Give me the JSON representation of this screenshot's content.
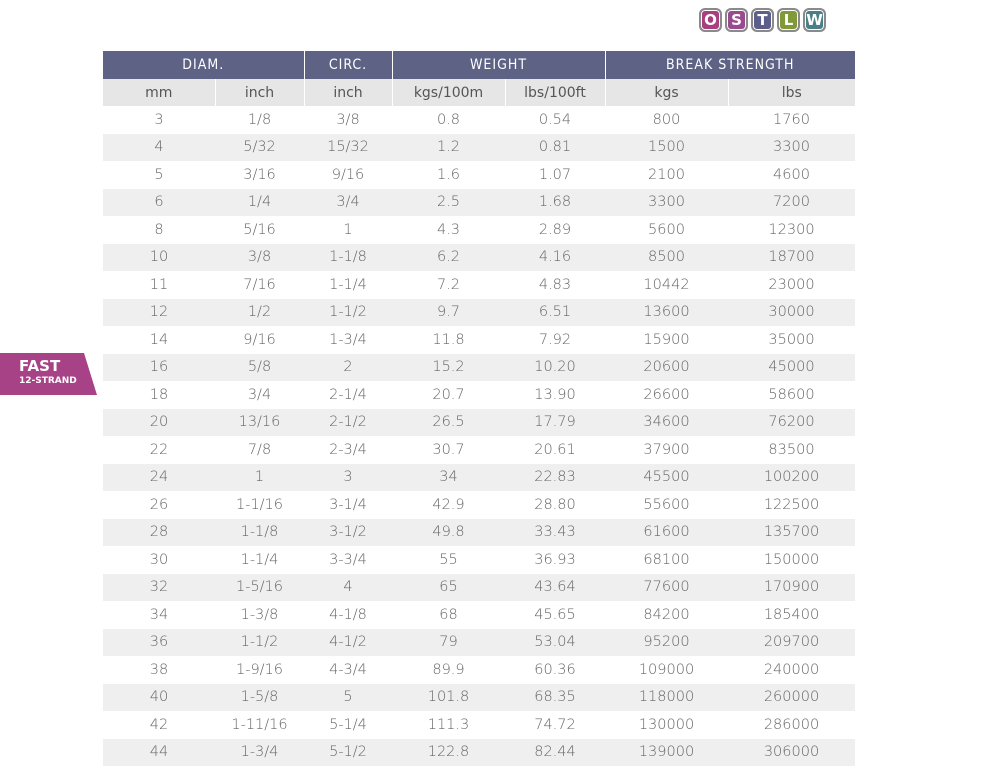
{
  "logo": {
    "letters": [
      {
        "char": "O",
        "color": "#a8407f"
      },
      {
        "char": "S",
        "color": "#9a4a8f"
      },
      {
        "char": "T",
        "color": "#5c5f8a"
      },
      {
        "char": "L",
        "color": "#7f9a36"
      },
      {
        "char": "W",
        "color": "#4a7f87"
      }
    ]
  },
  "side_tab": {
    "title": "FAST",
    "subtitle": "12-STRAND",
    "color": "#a84286"
  },
  "table": {
    "groups": [
      "DIAM.",
      "CIRC.",
      "WEIGHT",
      "BREAK STRENGTH"
    ],
    "units": [
      "mm",
      "inch",
      "inch",
      "kgs/100m",
      "lbs/100ft",
      "kgs",
      "lbs"
    ],
    "rows": [
      [
        "3",
        "1/8",
        "3/8",
        "0.8",
        "0.54",
        "800",
        "1760"
      ],
      [
        "4",
        "5/32",
        "15/32",
        "1.2",
        "0.81",
        "1500",
        "3300"
      ],
      [
        "5",
        "3/16",
        "9/16",
        "1.6",
        "1.07",
        "2100",
        "4600"
      ],
      [
        "6",
        "1/4",
        "3/4",
        "2.5",
        "1.68",
        "3300",
        "7200"
      ],
      [
        "8",
        "5/16",
        "1",
        "4.3",
        "2.89",
        "5600",
        "12300"
      ],
      [
        "10",
        "3/8",
        "1-1/8",
        "6.2",
        "4.16",
        "8500",
        "18700"
      ],
      [
        "11",
        "7/16",
        "1-1/4",
        "7.2",
        "4.83",
        "10442",
        "23000"
      ],
      [
        "12",
        "1/2",
        "1-1/2",
        "9.7",
        "6.51",
        "13600",
        "30000"
      ],
      [
        "14",
        "9/16",
        "1-3/4",
        "11.8",
        "7.92",
        "15900",
        "35000"
      ],
      [
        "16",
        "5/8",
        "2",
        "15.2",
        "10.20",
        "20600",
        "45000"
      ],
      [
        "18",
        "3/4",
        "2-1/4",
        "20.7",
        "13.90",
        "26600",
        "58600"
      ],
      [
        "20",
        "13/16",
        "2-1/2",
        "26.5",
        "17.79",
        "34600",
        "76200"
      ],
      [
        "22",
        "7/8",
        "2-3/4",
        "30.7",
        "20.61",
        "37900",
        "83500"
      ],
      [
        "24",
        "1",
        "3",
        "34",
        "22.83",
        "45500",
        "100200"
      ],
      [
        "26",
        "1-1/16",
        "3-1/4",
        "42.9",
        "28.80",
        "55600",
        "122500"
      ],
      [
        "28",
        "1-1/8",
        "3-1/2",
        "49.8",
        "33.43",
        "61600",
        "135700"
      ],
      [
        "30",
        "1-1/4",
        "3-3/4",
        "55",
        "36.93",
        "68100",
        "150000"
      ],
      [
        "32",
        "1-5/16",
        "4",
        "65",
        "43.64",
        "77600",
        "170900"
      ],
      [
        "34",
        "1-3/8",
        "4-1/8",
        "68",
        "45.65",
        "84200",
        "185400"
      ],
      [
        "36",
        "1-1/2",
        "4-1/2",
        "79",
        "53.04",
        "95200",
        "209700"
      ],
      [
        "38",
        "1-9/16",
        "4-3/4",
        "89.9",
        "60.36",
        "109000",
        "240000"
      ],
      [
        "40",
        "1-5/8",
        "5",
        "101.8",
        "68.35",
        "118000",
        "260000"
      ],
      [
        "42",
        "1-11/16",
        "5-1/4",
        "111.3",
        "74.72",
        "130000",
        "286000"
      ],
      [
        "44",
        "1-3/4",
        "5-1/2",
        "122.8",
        "82.44",
        "139000",
        "306000"
      ]
    ]
  },
  "colors": {
    "header_band": "#5e6386",
    "subheader_band": "#e6e6e6",
    "stripe": "#efefef",
    "text": "#666666"
  }
}
